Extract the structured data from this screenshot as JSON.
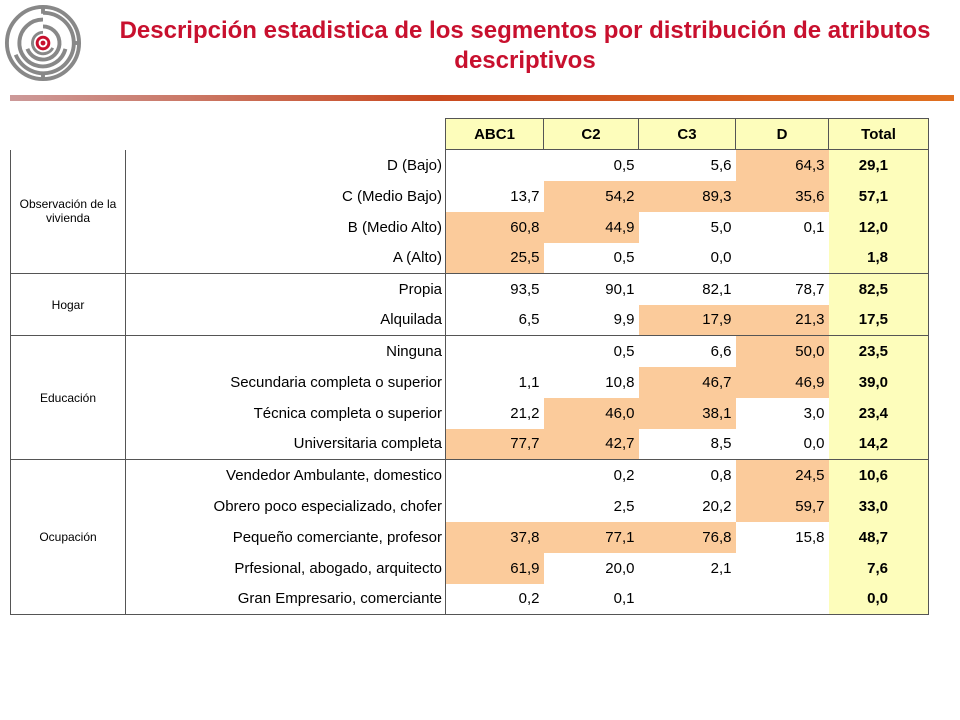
{
  "title": "Descripción estadistica de los segmentos por distribución de atributos descriptivos",
  "columns": [
    "ABC1",
    "C2",
    "C3",
    "D",
    "Total"
  ],
  "groups": [
    {
      "name": "Observación de la vivienda",
      "rows": [
        {
          "label": "D (Bajo)",
          "values": [
            "",
            "0,5",
            "5,6",
            "64,3"
          ],
          "total": "29,1",
          "highlight": [
            false,
            false,
            false,
            true
          ]
        },
        {
          "label": "C (Medio Bajo)",
          "values": [
            "13,7",
            "54,2",
            "89,3",
            "35,6"
          ],
          "total": "57,1",
          "highlight": [
            false,
            true,
            true,
            true
          ]
        },
        {
          "label": "B (Medio Alto)",
          "values": [
            "60,8",
            "44,9",
            "5,0",
            "0,1"
          ],
          "total": "12,0",
          "highlight": [
            true,
            true,
            false,
            false
          ]
        },
        {
          "label": "A (Alto)",
          "values": [
            "25,5",
            "0,5",
            "0,0",
            ""
          ],
          "total": "1,8",
          "highlight": [
            true,
            false,
            false,
            false
          ]
        }
      ]
    },
    {
      "name": "Hogar",
      "rows": [
        {
          "label": "Propia",
          "values": [
            "93,5",
            "90,1",
            "82,1",
            "78,7"
          ],
          "total": "82,5",
          "highlight": [
            false,
            false,
            false,
            false
          ]
        },
        {
          "label": "Alquilada",
          "values": [
            "6,5",
            "9,9",
            "17,9",
            "21,3"
          ],
          "total": "17,5",
          "highlight": [
            false,
            false,
            true,
            true
          ]
        }
      ]
    },
    {
      "name": "Educación",
      "rows": [
        {
          "label": "Ninguna",
          "values": [
            "",
            "0,5",
            "6,6",
            "50,0"
          ],
          "total": "23,5",
          "highlight": [
            false,
            false,
            false,
            true
          ]
        },
        {
          "label": "Secundaria completa o superior",
          "values": [
            "1,1",
            "10,8",
            "46,7",
            "46,9"
          ],
          "total": "39,0",
          "highlight": [
            false,
            false,
            true,
            true
          ]
        },
        {
          "label": "Técnica completa o superior",
          "values": [
            "21,2",
            "46,0",
            "38,1",
            "3,0"
          ],
          "total": "23,4",
          "highlight": [
            false,
            true,
            true,
            false
          ]
        },
        {
          "label": "Universitaria completa",
          "values": [
            "77,7",
            "42,7",
            "8,5",
            "0,0"
          ],
          "total": "14,2",
          "highlight": [
            true,
            true,
            false,
            false
          ]
        }
      ]
    },
    {
      "name": "Ocupación",
      "rows": [
        {
          "label": "Vendedor Ambulante, domestico",
          "values": [
            "",
            "0,2",
            "0,8",
            "24,5"
          ],
          "total": "10,6",
          "highlight": [
            false,
            false,
            false,
            true
          ]
        },
        {
          "label": "Obrero poco especializado, chofer",
          "values": [
            "",
            "2,5",
            "20,2",
            "59,7"
          ],
          "total": "33,0",
          "highlight": [
            false,
            false,
            false,
            true
          ]
        },
        {
          "label": "Pequeño comerciante, profesor",
          "values": [
            "37,8",
            "77,1",
            "76,8",
            "15,8"
          ],
          "total": "48,7",
          "highlight": [
            true,
            true,
            true,
            false
          ]
        },
        {
          "label": "Prfesional, abogado, arquitecto",
          "values": [
            "61,9",
            "20,0",
            "2,1",
            ""
          ],
          "total": "7,6",
          "highlight": [
            true,
            false,
            false,
            false
          ]
        },
        {
          "label": "Gran Empresario, comerciante",
          "values": [
            "0,2",
            "0,1",
            "",
            ""
          ],
          "total": "0,0",
          "highlight": [
            false,
            false,
            false,
            false
          ]
        }
      ]
    }
  ],
  "colors": {
    "title": "#c8102e",
    "highlight": "#fbcb9b",
    "header_total": "#fdfdbb"
  },
  "logo": {
    "icon": "maze-target-icon"
  }
}
